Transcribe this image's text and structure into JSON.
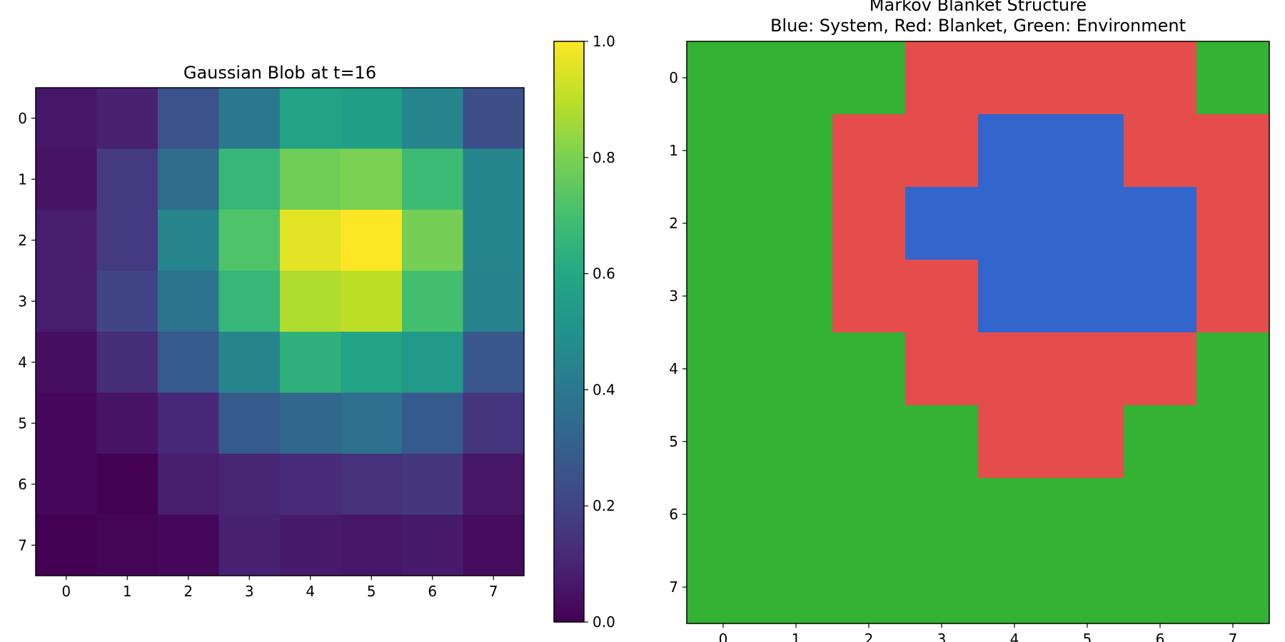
{
  "chart_data": [
    {
      "type": "heatmap",
      "title": "Gaussian Blob at t=16",
      "x_ticks": [
        "0",
        "1",
        "2",
        "3",
        "4",
        "5",
        "6",
        "7"
      ],
      "y_ticks": [
        "0",
        "1",
        "2",
        "3",
        "4",
        "5",
        "6",
        "7"
      ],
      "colormap": "viridis",
      "vmin": 0.0,
      "vmax": 1.0,
      "colorbar_ticks": [
        "0.0",
        "0.2",
        "0.4",
        "0.6",
        "0.8",
        "1.0"
      ],
      "values": [
        [
          0.06,
          0.09,
          0.25,
          0.4,
          0.58,
          0.56,
          0.45,
          0.24
        ],
        [
          0.05,
          0.17,
          0.35,
          0.66,
          0.78,
          0.8,
          0.68,
          0.46
        ],
        [
          0.08,
          0.17,
          0.45,
          0.72,
          0.96,
          1.0,
          0.79,
          0.46
        ],
        [
          0.08,
          0.2,
          0.38,
          0.66,
          0.88,
          0.9,
          0.7,
          0.44
        ],
        [
          0.04,
          0.13,
          0.28,
          0.45,
          0.64,
          0.58,
          0.54,
          0.27
        ],
        [
          0.02,
          0.05,
          0.11,
          0.28,
          0.33,
          0.36,
          0.28,
          0.15
        ],
        [
          0.02,
          0.0,
          0.08,
          0.1,
          0.12,
          0.14,
          0.16,
          0.06
        ],
        [
          0.0,
          0.01,
          0.02,
          0.09,
          0.07,
          0.06,
          0.07,
          0.03
        ]
      ]
    },
    {
      "type": "heatmap",
      "title": "Markov Blanket Structure",
      "subtitle": "Blue: System, Red: Blanket, Green: Environment",
      "x_ticks": [
        "0",
        "1",
        "2",
        "3",
        "4",
        "5",
        "6",
        "7"
      ],
      "y_ticks": [
        "0",
        "1",
        "2",
        "3",
        "4",
        "5",
        "6",
        "7"
      ],
      "categories": [
        "System",
        "Blanket",
        "Environment"
      ],
      "colors": {
        "System": "#3366cc",
        "Blanket": "#e54c4c",
        "Environment": "#33b233"
      },
      "values": [
        [
          "Environment",
          "Environment",
          "Environment",
          "Blanket",
          "Blanket",
          "Blanket",
          "Blanket",
          "Environment"
        ],
        [
          "Environment",
          "Environment",
          "Blanket",
          "Blanket",
          "System",
          "System",
          "Blanket",
          "Blanket"
        ],
        [
          "Environment",
          "Environment",
          "Blanket",
          "System",
          "System",
          "System",
          "System",
          "Blanket"
        ],
        [
          "Environment",
          "Environment",
          "Blanket",
          "Blanket",
          "System",
          "System",
          "System",
          "Blanket"
        ],
        [
          "Environment",
          "Environment",
          "Environment",
          "Blanket",
          "Blanket",
          "Blanket",
          "Blanket",
          "Environment"
        ],
        [
          "Environment",
          "Environment",
          "Environment",
          "Environment",
          "Blanket",
          "Blanket",
          "Environment",
          "Environment"
        ],
        [
          "Environment",
          "Environment",
          "Environment",
          "Environment",
          "Environment",
          "Environment",
          "Environment",
          "Environment"
        ],
        [
          "Environment",
          "Environment",
          "Environment",
          "Environment",
          "Environment",
          "Environment",
          "Environment",
          "Environment"
        ]
      ]
    }
  ]
}
